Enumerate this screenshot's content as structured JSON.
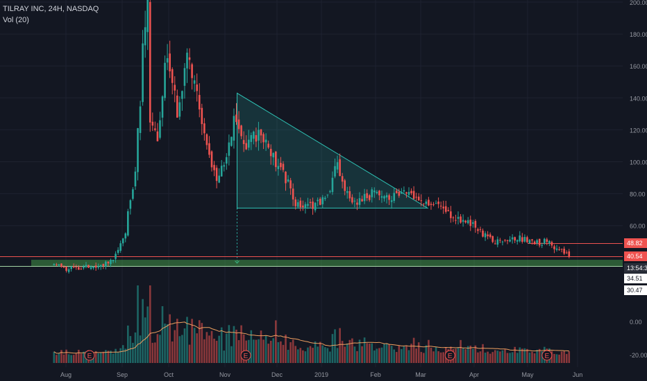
{
  "header": {
    "symbol_title": "TILRAY INC, 24H, NASDAQ",
    "volume_indicator": "Vol (20)"
  },
  "colors": {
    "background": "#131722",
    "up": "#26a69a",
    "down": "#ef5350",
    "grid": "#1e2230",
    "axis_text": "#9598a1",
    "triangle_line": "#2ec4b6",
    "triangle_fill": "rgba(38,166,154,0.20)",
    "support_band": "rgba(76,175,80,0.45)",
    "volume_ma": "#f0a060"
  },
  "chart_data": {
    "type": "candlestick",
    "title": "TILRAY INC, 24H, NASDAQ",
    "ylabel": "",
    "ylim": [
      15,
      200
    ],
    "y_ticks": [
      "200.00",
      "180.00",
      "160.00",
      "140.00",
      "120.00",
      "100.00",
      "80.00",
      "60.00"
    ],
    "x_ticks": [
      "Aug",
      "Sep",
      "Oct",
      "Nov",
      "Dec",
      "2019",
      "Feb",
      "Mar",
      "Apr",
      "May",
      "Jun"
    ],
    "price_labels": [
      {
        "text": "48.82",
        "value": 48.82,
        "style": "red"
      },
      {
        "text": "40.54",
        "value": 40.54,
        "style": "red"
      },
      {
        "text": "13:54:31",
        "value": 38.5,
        "style": "dark"
      },
      {
        "text": "34.51",
        "value": 34.51,
        "style": "light"
      },
      {
        "text": "30.47",
        "value": 30.47,
        "style": "light"
      }
    ],
    "horizontal_lines": [
      {
        "value": 48.82,
        "color": "red",
        "from": "May"
      },
      {
        "value": 40.54,
        "color": "red"
      }
    ],
    "support_band": {
      "from": 34.51,
      "to": 38.6
    },
    "descending_triangle": {
      "apex_date": "Nov 8",
      "apex_price": 143,
      "end_date": "Mar 5",
      "end_price": 71,
      "base": 71
    },
    "price_path": [
      [
        "Jul 19",
        24,
        36
      ],
      [
        "Jul 25",
        35,
        35
      ],
      [
        "Aug 1",
        33,
        33
      ],
      [
        "Aug 10",
        32,
        34
      ],
      [
        "Aug 20",
        35,
        35
      ],
      [
        "Aug 27",
        37,
        40
      ],
      [
        "Sep 4",
        48,
        65
      ],
      [
        "Sep 10",
        80,
        110
      ],
      [
        "Sep 14",
        120,
        165
      ],
      [
        "Sep 18",
        200,
        215
      ],
      [
        "Sep 19",
        180,
        125
      ],
      [
        "Sep 24",
        112,
        110
      ],
      [
        "Sep 28",
        130,
        165
      ],
      [
        "Oct 2",
        165,
        150
      ],
      [
        "Oct 6",
        135,
        128
      ],
      [
        "Oct 11",
        172,
        170
      ],
      [
        "Oct 16",
        150,
        145
      ],
      [
        "Oct 22",
        112,
        108
      ],
      [
        "Oct 27",
        95,
        90
      ],
      [
        "Nov 2",
        102,
        108
      ],
      [
        "Nov 8",
        143,
        120
      ],
      [
        "Nov 13",
        108,
        110
      ],
      [
        "Nov 22",
        120,
        118
      ],
      [
        "Nov 30",
        105,
        98
      ],
      [
        "Dec 8",
        90,
        88
      ],
      [
        "Dec 14",
        72,
        75
      ],
      [
        "Dec 20",
        72,
        74
      ],
      [
        "Dec 28",
        70,
        74
      ],
      [
        "Jan 5",
        78,
        76
      ],
      [
        "Jan 10",
        102,
        100
      ],
      [
        "Jan 14",
        82,
        80
      ],
      [
        "Jan 20",
        76,
        74
      ],
      [
        "Feb 1",
        82,
        80
      ],
      [
        "Feb 10",
        78,
        78
      ],
      [
        "Feb 20",
        80,
        82
      ],
      [
        "Mar 1",
        80,
        75
      ],
      [
        "Mar 10",
        75,
        73
      ],
      [
        "Mar 18",
        68,
        66
      ],
      [
        "Mar 28",
        64,
        62
      ],
      [
        "Apr 5",
        58,
        55
      ],
      [
        "Apr 12",
        52,
        50
      ],
      [
        "Apr 20",
        52,
        53
      ],
      [
        "May 1",
        52,
        50
      ],
      [
        "May 10",
        48,
        50
      ],
      [
        "May 16",
        50,
        48
      ],
      [
        "May 22",
        45,
        44
      ],
      [
        "May 27",
        41,
        40.54
      ]
    ],
    "volume": {
      "y_ticks": [
        "0.00",
        "-20.00"
      ],
      "moving_average_period": 20
    },
    "earnings_markers": [
      {
        "date": "Aug 14",
        "label": "E"
      },
      {
        "date": "Nov 13",
        "label": "E"
      },
      {
        "date": "Mar 18",
        "label": "E"
      },
      {
        "date": "May 13",
        "label": "E"
      }
    ]
  }
}
